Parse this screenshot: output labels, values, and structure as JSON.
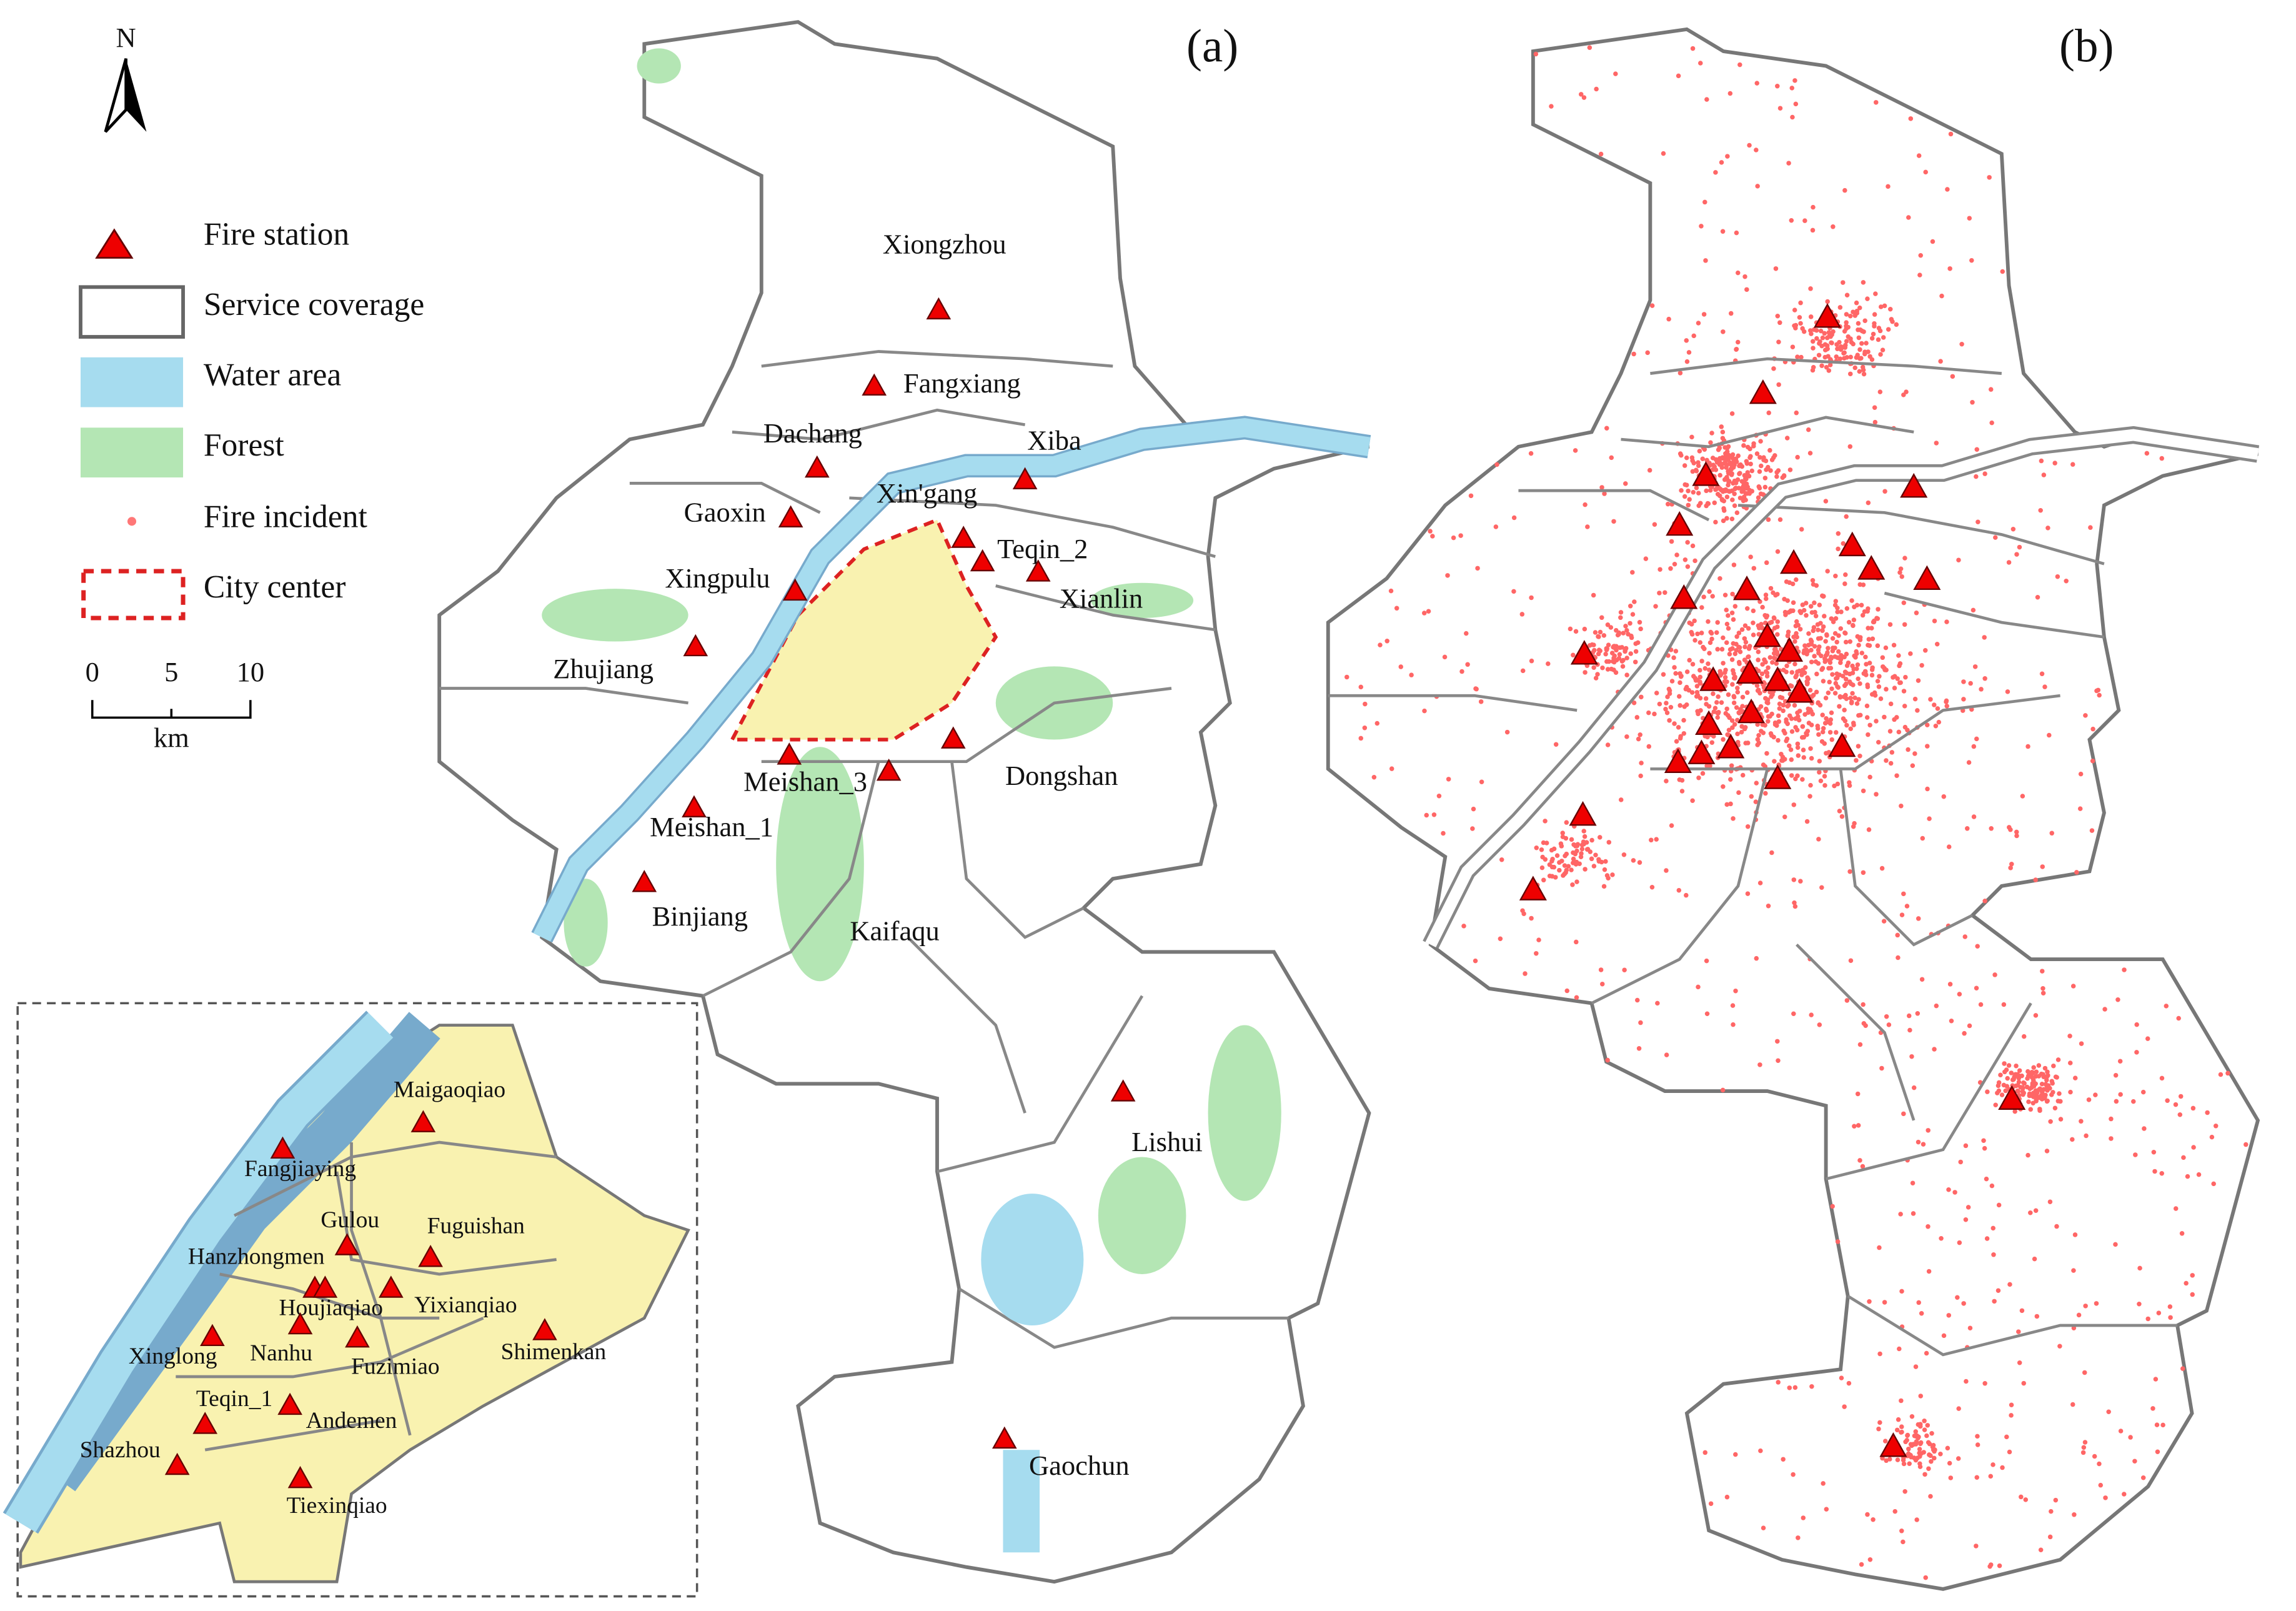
{
  "panels": {
    "a": "(a)",
    "b": "(b)"
  },
  "north": "N",
  "legend": [
    "Fire station",
    "Service coverage",
    "Water area",
    "Forest",
    "Fire incident",
    "City center"
  ],
  "scale_bar": {
    "ticks": [
      "0",
      "5",
      "10"
    ],
    "unit": "km"
  },
  "stations": [
    "Xiongzhou",
    "Fangxiang",
    "Dachang",
    "Xiba",
    "Gaoxin",
    "Xin'gang",
    "Teqin_2",
    "Xianlin",
    "Xingpulu",
    "Zhujiang",
    "Meishan_3",
    "Dongshan",
    "Meishan_1",
    "Binjiang",
    "Kaifaqu",
    "Lishui",
    "Gaochun"
  ],
  "inset_stations": [
    "Maigaoqiao",
    "Fangjiaying",
    "Gulou",
    "Fuguishan",
    "Hanzhongmen",
    "Houjiaqiao",
    "Yixianqiao",
    "Xinglong",
    "Nanhu",
    "Fuzimiao",
    "Shimenkan",
    "Teqin_1",
    "Andemen",
    "Shazhou",
    "Tiexinqiao"
  ]
}
